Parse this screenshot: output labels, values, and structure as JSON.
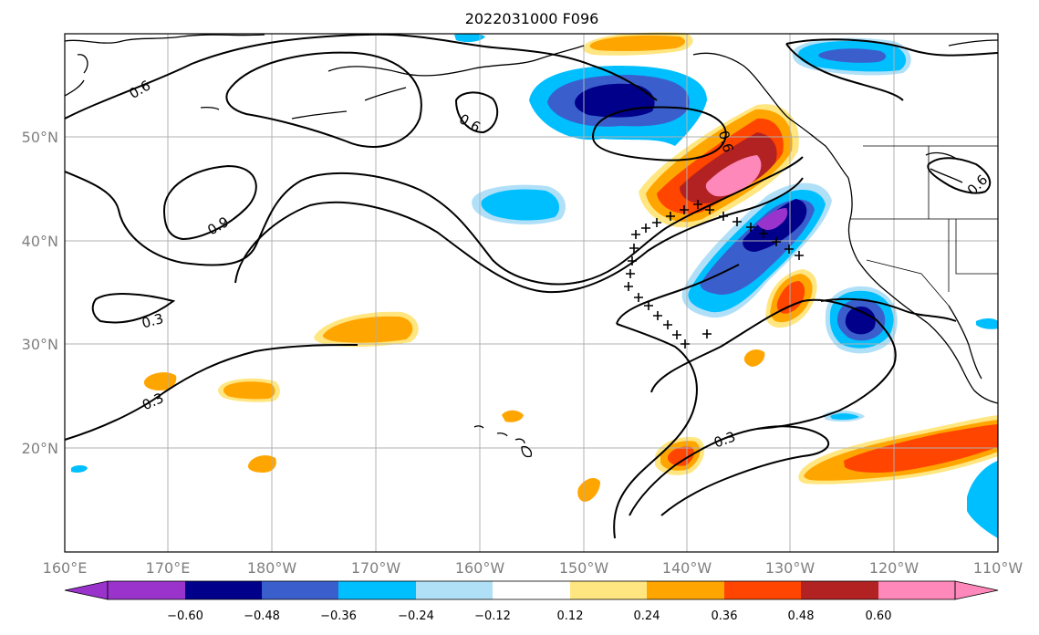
{
  "title": "2022031000 F096",
  "axes": {
    "lon_labels": [
      "160°E",
      "170°E",
      "180°W",
      "170°W",
      "160°W",
      "150°W",
      "140°W",
      "130°W",
      "120°W",
      "110°W"
    ],
    "lat_labels": [
      "50°N",
      "40°N",
      "30°N",
      "20°N"
    ],
    "lon_range": [
      160,
      250
    ],
    "lat_range": [
      10,
      60
    ],
    "grid": true
  },
  "colorbar": {
    "ticks": [
      "−0.60",
      "−0.48",
      "−0.36",
      "−0.24",
      "−0.12",
      "0.12",
      "0.24",
      "0.36",
      "0.48",
      "0.60"
    ],
    "colors": [
      "#9933cc",
      "#00008b",
      "#3a5fcd",
      "#00bfff",
      "#b0e0f8",
      "#ffffff",
      "#ffe680",
      "#ffa500",
      "#ff4500",
      "#b22222",
      "#ff88bb"
    ],
    "extend": "both"
  },
  "contour_labels": [
    "0.6",
    "0.6",
    "0.9",
    "0.3",
    "0.3",
    "0.3",
    "0.6",
    "0.6"
  ],
  "colors": {
    "purple": "#9933cc",
    "navy": "#00008b",
    "royal_blue": "#3a5fcd",
    "sky_blue": "#00bfff",
    "light_blue": "#b0e0f8",
    "light_yellow": "#ffe680",
    "orange": "#ffa500",
    "red_orange": "#ff4500",
    "dark_red": "#b22222",
    "pink": "#ff88bb"
  }
}
